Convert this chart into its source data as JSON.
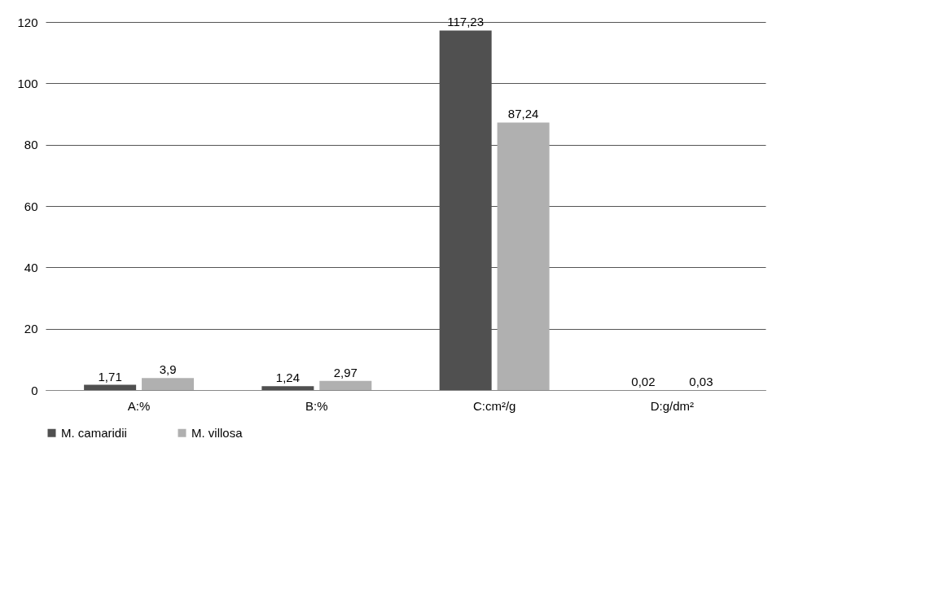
{
  "chart_data": {
    "type": "bar",
    "categories": [
      "A:%",
      "B:%",
      "C:cm²/g",
      "D:g/dm²"
    ],
    "series": [
      {
        "name": "M. camaridii",
        "color": "#505050",
        "values": [
          1.71,
          1.24,
          117.23,
          0.02
        ],
        "value_labels": [
          "1,71",
          "1,24",
          "117,23",
          "0,02"
        ]
      },
      {
        "name": "M. villosa",
        "color": "#b0b0b0",
        "values": [
          3.9,
          2.97,
          87.24,
          0.03
        ],
        "value_labels": [
          "3,9",
          "2,97",
          "87,24",
          "0,03"
        ]
      }
    ],
    "ylim": [
      0,
      120
    ],
    "yticks": [
      0,
      20,
      40,
      60,
      80,
      100,
      120
    ],
    "grid": "y",
    "legend": "bottom"
  }
}
